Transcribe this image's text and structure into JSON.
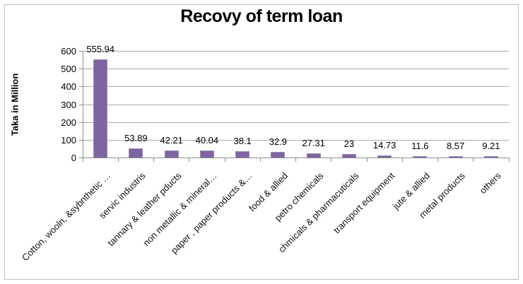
{
  "chart_data": {
    "type": "bar",
    "title": "Recovy of term loan",
    "ylabel": "Taka in Million",
    "xlabel": "",
    "categories": [
      "Cotton, wooln, &sybnthetic …",
      "servic industris",
      "tannary & leather pducts",
      "non metallic & mineral…",
      "paper , paper products &…",
      "food & allied",
      "petro chemicals",
      "chmicals & pharmacuticals",
      "transport equipment",
      "jute & allied",
      "metal products",
      "others"
    ],
    "values": [
      555.94,
      53.89,
      42.21,
      40.04,
      38.1,
      32.9,
      27.31,
      23,
      14.73,
      11.6,
      8.57,
      9.21
    ],
    "labels": [
      "555.94",
      "53.89",
      "42.21",
      "40.04",
      "38.1",
      "32.9",
      "27.31",
      "23",
      "14.73",
      "11.6",
      "8.57",
      "9.21"
    ],
    "ylim": [
      0,
      600
    ],
    "yticks": [
      0,
      100,
      200,
      300,
      400,
      500,
      600
    ],
    "grid": true,
    "legend": "none",
    "colors": {
      "bar": "#8064A2",
      "bar_border": "#9C8ABB",
      "gridline": "#ACACAC",
      "axis": "#8F8F8F",
      "text": "#000000",
      "frame_border": "#BFBFBF",
      "background": "#FFFFFF"
    }
  }
}
